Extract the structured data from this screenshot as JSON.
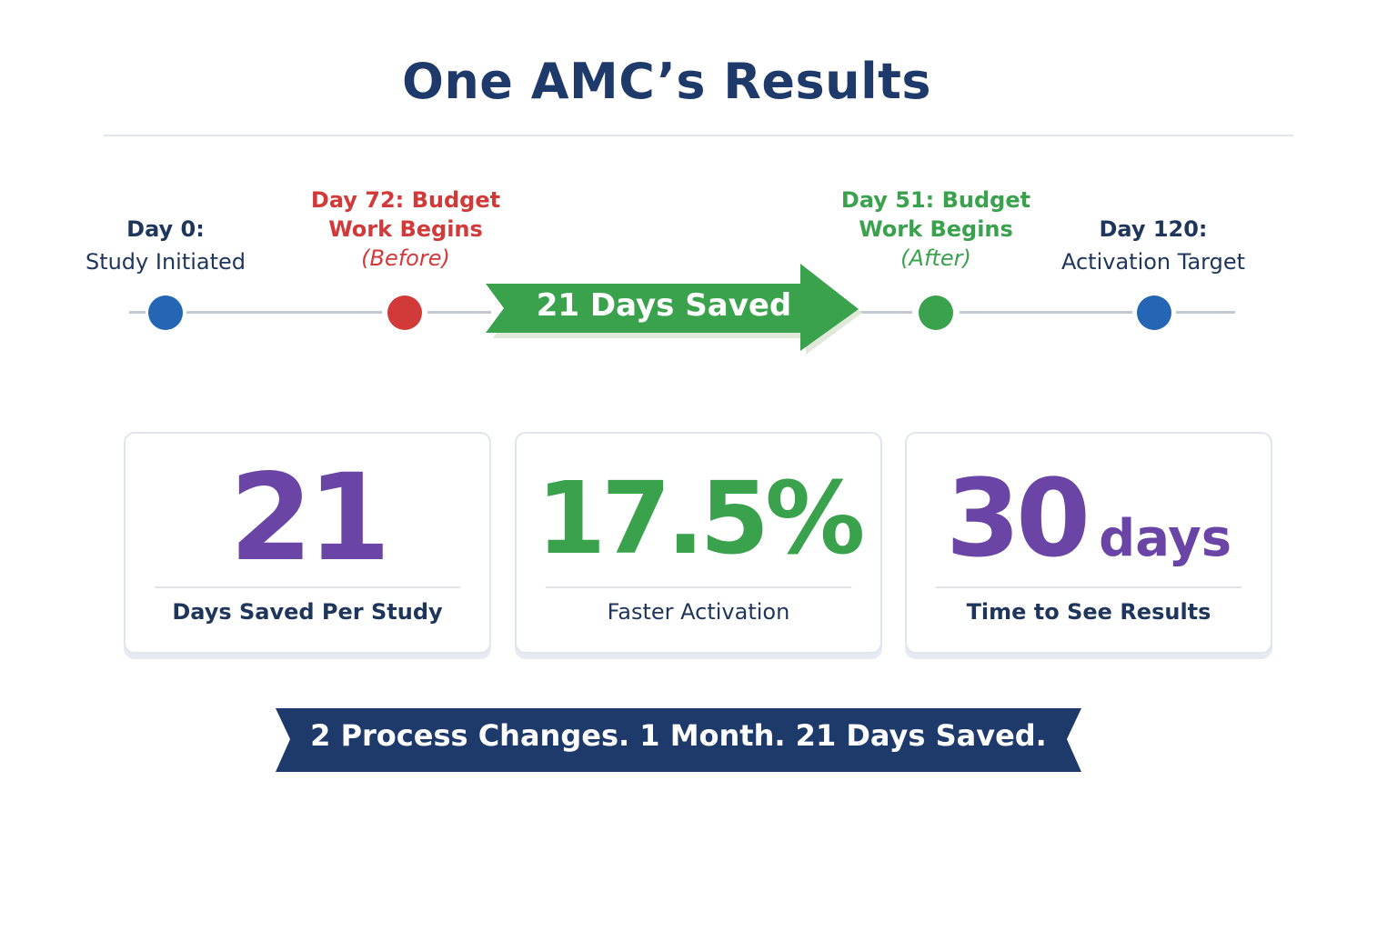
{
  "title": "One AMC’s Results",
  "timeline": {
    "milestones": [
      {
        "day": 0,
        "label1": "Day 0:",
        "label2": "Study Initiated",
        "label3": "",
        "color": "#2466b4"
      },
      {
        "day": 72,
        "label1": "Day 72: Budget",
        "label2": "Work Begins",
        "label3": "(Before)",
        "color": "#d23a3a"
      },
      {
        "day": 51,
        "label1": "Day 51: Budget",
        "label2": "Work Begins",
        "label3": "(After)",
        "color": "#3aa14d"
      },
      {
        "day": 120,
        "label1": "Day 120:",
        "label2": "Activation Target",
        "label3": "",
        "color": "#2466b4"
      }
    ],
    "arrow_label": "21 Days Saved",
    "arrow_color": "#3aa14d"
  },
  "cards": [
    {
      "value": "21",
      "unit": "",
      "caption": "Days Saved Per Study",
      "color": "#6a45a5"
    },
    {
      "value": "17.5%",
      "unit": "",
      "caption": "Faster Activation",
      "color": "#3aa14d"
    },
    {
      "value": "30",
      "unit": "days",
      "caption": "Time to See Results",
      "color": "#6a45a5"
    }
  ],
  "banner": {
    "text": "2 Process Changes. 1 Month. 21 Days Saved.",
    "color": "#1d3a6b"
  }
}
